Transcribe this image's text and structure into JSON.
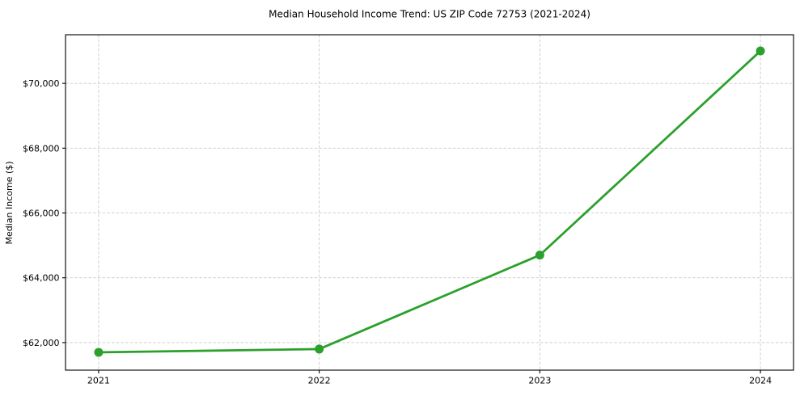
{
  "chart_data": {
    "type": "line",
    "title": "Median Household Income Trend: US ZIP Code 72753 (2021-2024)",
    "xlabel": "",
    "ylabel": "Median Income ($)",
    "x": [
      2021,
      2022,
      2023,
      2024
    ],
    "x_tick_labels": [
      "2021",
      "2022",
      "2023",
      "2024"
    ],
    "values": [
      61700,
      61800,
      64700,
      71000
    ],
    "y_ticks": [
      62000,
      64000,
      66000,
      68000,
      70000
    ],
    "y_tick_labels": [
      "$62,000",
      "$64,000",
      "$66,000",
      "$68,000",
      "$70,000"
    ],
    "xlim": [
      2020.85,
      2024.15
    ],
    "ylim": [
      61150,
      71500
    ],
    "grid": true,
    "grid_linestyle": "dashed",
    "legend_position": "none",
    "marker": "circle",
    "colors": {
      "line": "#2ca02c",
      "marker": "#2ca02c",
      "grid": "#c9c9c9",
      "spine": "#000000",
      "tick": "#000000",
      "text": "#000000",
      "background": "#ffffff"
    }
  }
}
